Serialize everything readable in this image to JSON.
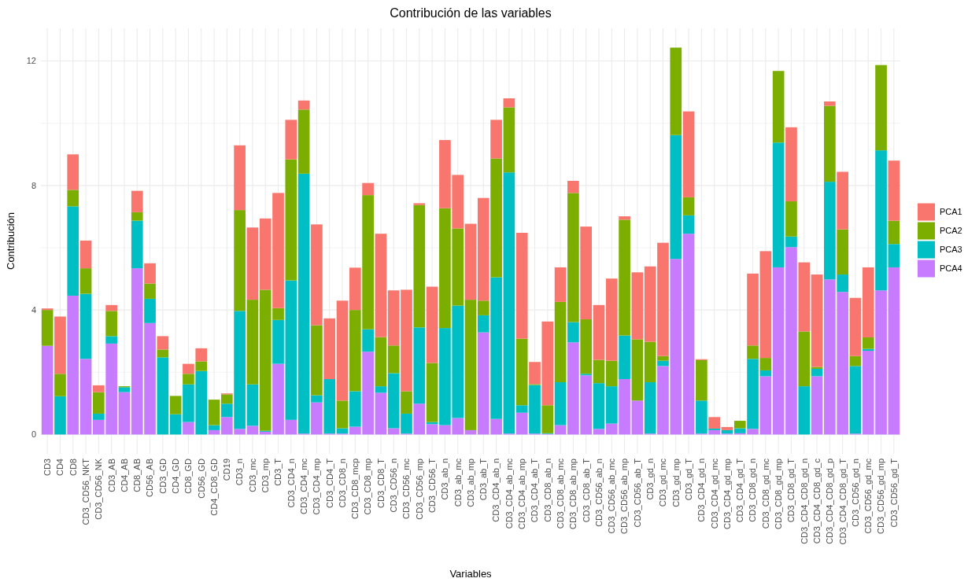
{
  "chart_data": {
    "type": "bar",
    "stacked": true,
    "title": "Contribución de las variables",
    "xlabel": "Variables",
    "ylabel": "Contribución",
    "categories": [
      "CD3",
      "CD4",
      "CD8",
      "CD3_CD56_NKT",
      "CD3_CD56_NK",
      "CD3_AB",
      "CD4_AB",
      "CD8_AB",
      "CD56_AB",
      "CD3_GD",
      "CD4_GD",
      "CD8_GD",
      "CD56_GD",
      "CD4_CD8_GD",
      "CD19",
      "CD3_n",
      "CD3_mc",
      "CD3_mp",
      "CD3_T",
      "CD3_CD4_n",
      "CD3_CD4_mc",
      "CD3_CD4_mp",
      "CD3_CD4_T",
      "CD3_CD8_n",
      "CD3_CD8_mcp",
      "CD3_CD8_mp",
      "CD3_CD8_T",
      "CD3_CD56_n",
      "CD3_CD56_mc",
      "CD3_CD56_mp",
      "CD3_CD56_T",
      "CD3_ab_n",
      "CD3_ab_mc",
      "CD3_ab_mp",
      "CD3_ab_T",
      "CD3_CD4_ab_n",
      "CD3_CD4_ab_mc",
      "CD3_CD4_ab_mp",
      "CD3_CD4_ab_T",
      "CD3_CD8_ab_n",
      "CD3_CD8_ab_mc",
      "CD3_CD8_ab_mp",
      "CD3_CD8_ab_T",
      "CD3_CD56_ab_n",
      "CD3_CD56_ab_mc",
      "CD3_CD56_ab_mp",
      "CD3_CD56_ab_T",
      "CD3_gd_n",
      "CD3_gd_mc",
      "CD3_gd_mp",
      "CD3_gd_T",
      "CD3_CD4_gd_n",
      "CD3_CD4_gd_mc",
      "CD3_CD4_gd_mp",
      "CD3_CD4_gd_T",
      "CD3_CD8_gd_n",
      "CD3_CD8_gd_mc",
      "CD3_CD8_gd_mp",
      "CD3_CD8_gd_T",
      "CD3_CD4_CD8_gd_n",
      "CD3_CD4_CD8_gd_c",
      "CD3_CD4_CD8_gd_p",
      "CD3_CD4_CD8_gd_T",
      "CD3_CD56_gd_n",
      "CD3_CD56_gd_mc",
      "CD3_CD56_gd_mp",
      "CD3_CD56_gd_T"
    ],
    "series": [
      {
        "name": "PCA4",
        "color": "#c77cff",
        "values": [
          2.85,
          null,
          4.46,
          2.43,
          0.47,
          2.92,
          1.36,
          5.34,
          3.58,
          null,
          null,
          0.4,
          null,
          0.14,
          0.56,
          0.18,
          0.28,
          0.09,
          2.27,
          0.47,
          0.03,
          1.03,
          0.03,
          0.03,
          0.25,
          2.66,
          1.34,
          0.2,
          0.03,
          0.99,
          0.33,
          0.3,
          0.53,
          0.14,
          3.28,
          0.5,
          0.03,
          0.7,
          0.03,
          0.02,
          0.3,
          2.96,
          1.9,
          0.18,
          0.35,
          1.78,
          1.09,
          0.03,
          2.2,
          5.64,
          6.45,
          0.03,
          0.14,
          0.03,
          0.04,
          0.18,
          1.87,
          5.37,
          6.02,
          0,
          1.87,
          4.98,
          4.58,
          0.03,
          2.69,
          4.63,
          5.37
        ]
      },
      {
        "name": "PCA3",
        "color": "#00bfc4",
        "values": [
          0,
          1.23,
          2.87,
          2.09,
          0.2,
          0.24,
          0.16,
          1.53,
          0.78,
          2.48,
          0.65,
          1.21,
          2.04,
          0.16,
          0.43,
          3.79,
          1.33,
          0.03,
          1.41,
          4.48,
          8.35,
          0.23,
          1.75,
          0.17,
          1.14,
          0.72,
          0.21,
          1.77,
          0.64,
          2.45,
          0.07,
          3.12,
          3.61,
          0,
          0.55,
          4.55,
          8.39,
          0.24,
          1.56,
          0.02,
          1.38,
          0.65,
          0.05,
          1.47,
          1.2,
          1.4,
          0,
          1.65,
          0.17,
          3.98,
          0.59,
          1.06,
          0.05,
          0.11,
          0.16,
          2.25,
          0.19,
          4.01,
          0.34,
          1.55,
          0.24,
          3.14,
          0.56,
          2.17,
          0.06,
          4.5,
          0.75
        ]
      },
      {
        "name": "PCA2",
        "color": "#7cae00",
        "values": [
          1.15,
          0.72,
          0.53,
          0.82,
          0.69,
          0.81,
          0.03,
          0.27,
          0.49,
          0.25,
          0.59,
          0.34,
          0.31,
          0.82,
          0.3,
          3.24,
          2.72,
          4.53,
          0.38,
          3.89,
          2.06,
          2.25,
          0,
          0.89,
          2.61,
          4.31,
          1.58,
          0.89,
          0.72,
          3.93,
          1.9,
          3.85,
          2.48,
          4.19,
          0.47,
          3.82,
          2.09,
          2.14,
          0.03,
          0.9,
          2.58,
          4.15,
          1.75,
          0.75,
          0.82,
          3.72,
          1.97,
          1.3,
          0.15,
          2.81,
          0.58,
          1.3,
          0,
          0,
          0.24,
          0.43,
          0.4,
          2.3,
          1.13,
          1.76,
          0.06,
          2.44,
          1.45,
          0.32,
          0.37,
          2.74,
          0.75
        ]
      },
      {
        "name": "PCA1",
        "color": "#f8766d",
        "values": [
          0.05,
          1.84,
          1.14,
          0.89,
          0.22,
          0.19,
          null,
          0.69,
          0.65,
          0.43,
          0,
          0.32,
          0.42,
          0,
          0.03,
          2.08,
          2.32,
          2.29,
          3.7,
          1.27,
          0.29,
          3.24,
          1.95,
          3.21,
          1.36,
          0.39,
          3.32,
          1.77,
          3.26,
          0.06,
          2.45,
          2.19,
          1.72,
          2.44,
          3.3,
          1.24,
          0.29,
          3.4,
          0.71,
          2.69,
          1.11,
          0.39,
          2.98,
          1.76,
          2.64,
          0.11,
          2.15,
          2.42,
          3.64,
          0,
          2.76,
          0.03,
          0.37,
          0.1,
          0,
          2.31,
          3.43,
          0,
          2.38,
          2.22,
          2.97,
          0.14,
          1.85,
          1.87,
          2.25,
          0,
          1.93
        ]
      }
    ],
    "ylim": [
      -0.62,
      13.05
    ],
    "yticks": [
      0,
      {
        "value": 2,
        "label": null
      },
      4,
      {
        "value": 6,
        "label": null
      },
      8,
      {
        "value": 10,
        "label": null
      },
      12
    ],
    "grid": true,
    "legend": "right"
  }
}
